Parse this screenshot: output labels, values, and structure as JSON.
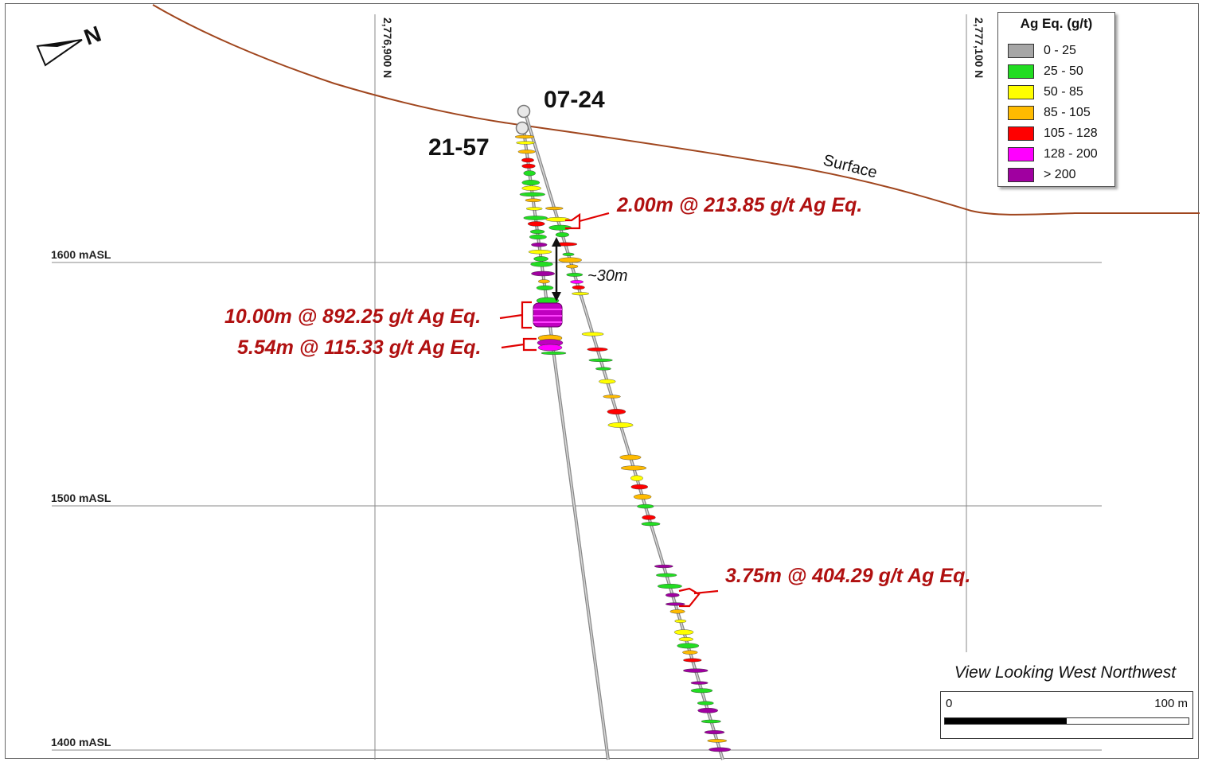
{
  "legend": {
    "title": "Ag Eq. (g/t)",
    "items": [
      {
        "label": "0 - 25",
        "color": "#a6a6a6"
      },
      {
        "label": "25 - 50",
        "color": "#22dd22"
      },
      {
        "label": "50 - 85",
        "color": "#ffff00"
      },
      {
        "label": "85 - 105",
        "color": "#ffbb00"
      },
      {
        "label": "105 - 128",
        "color": "#ff0000"
      },
      {
        "label": "128 - 200",
        "color": "#ff00ff"
      },
      {
        "label": "> 200",
        "color": "#a000a0"
      }
    ]
  },
  "elevations": {
    "e1600": "1600 mASL",
    "e1500": "1500 mASL",
    "e1400": "1400 mASL"
  },
  "northings": {
    "n1": "2,776,900 N",
    "n2": "2,777,100 N"
  },
  "holes": {
    "h1": "07-24",
    "h2": "21-57"
  },
  "surface_label": "Surface",
  "north_arrow": "N",
  "intercepts": {
    "i1": "2.00m @ 213.85 g/t Ag Eq.",
    "i2": "10.00m @ 892.25 g/t Ag Eq.",
    "i3": "5.54m @ 115.33 g/t Ag Eq.",
    "i4": "3.75m @ 404.29 g/t Ag Eq."
  },
  "separation_label": "~30m",
  "view_label": "View Looking West Northwest",
  "scale": {
    "min_label": "0",
    "max_label": "100 m"
  }
}
